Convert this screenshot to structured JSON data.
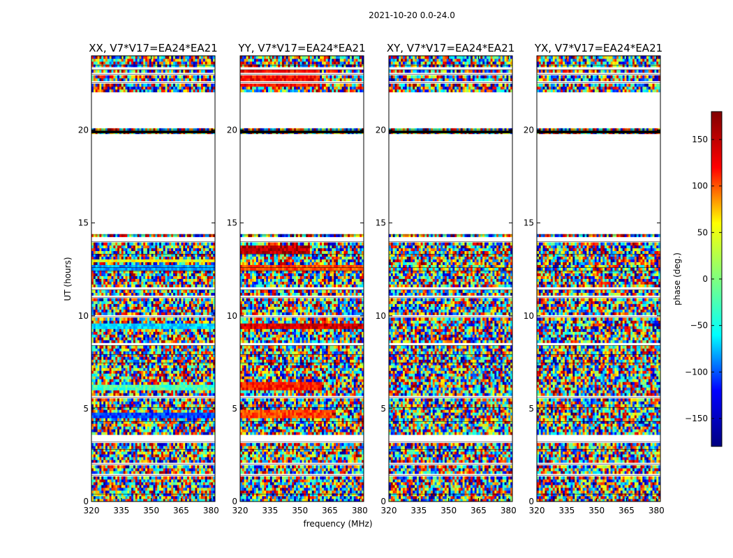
{
  "chart_data": {
    "type": "heatmap",
    "suptitle": "2021-10-20 0.0-24.0",
    "xlabel": "frequency (MHz)",
    "ylabel": "UT (hours)",
    "xlim": [
      320,
      382
    ],
    "ylim": [
      0,
      24
    ],
    "xticks": [
      "320",
      "335",
      "350",
      "365",
      "380"
    ],
    "yticks": [
      "0",
      "5",
      "10",
      "15",
      "20"
    ],
    "panels": [
      {
        "title": "XX, V7*V17=EA24*EA21",
        "coherent_bands": [
          {
            "t0": 4.55,
            "t1": 4.85,
            "phase": -110,
            "f_end": 382
          },
          {
            "t0": 6.0,
            "t1": 6.3,
            "phase": -20,
            "f_end": 382
          },
          {
            "t0": 9.3,
            "t1": 9.6,
            "phase": -60,
            "f_end": 382
          },
          {
            "t0": 12.5,
            "t1": 12.8,
            "phase": -80,
            "f_end": 382
          },
          {
            "t0": 12.85,
            "t1": 13.1,
            "phase": 40,
            "f_end": 382
          }
        ]
      },
      {
        "title": "YY, V7*V17=EA24*EA21",
        "coherent_bands": [
          {
            "t0": 4.55,
            "t1": 4.9,
            "phase": 110,
            "f_end": 366
          },
          {
            "t0": 6.05,
            "t1": 6.45,
            "phase": 125,
            "f_end": 361
          },
          {
            "t0": 9.35,
            "t1": 9.55,
            "phase": 150,
            "f_end": 382
          },
          {
            "t0": 12.5,
            "t1": 12.8,
            "phase": 110,
            "f_end": 382
          },
          {
            "t0": 13.3,
            "t1": 13.8,
            "phase": 160,
            "f_end": 355
          },
          {
            "t0": 22.3,
            "t1": 23.2,
            "phase": 135,
            "f_end": 360
          }
        ]
      },
      {
        "title": "XY, V7*V17=EA24*EA21",
        "coherent_bands": []
      },
      {
        "title": "YX, V7*V17=EA24*EA21",
        "coherent_bands": []
      }
    ],
    "flagged_rows": [
      [
        0.4,
        0.5
      ],
      [
        1.4,
        1.5
      ],
      [
        2.0,
        2.1
      ],
      [
        2.8,
        2.9
      ],
      [
        3.2,
        3.6
      ],
      [
        4.3,
        4.37
      ],
      [
        5.05,
        5.15
      ],
      [
        5.6,
        5.68
      ],
      [
        7.45,
        7.55
      ],
      [
        7.9,
        8.0
      ],
      [
        8.4,
        8.5
      ],
      [
        9.95,
        10.05
      ],
      [
        11.0,
        11.1
      ],
      [
        11.4,
        11.5
      ],
      [
        12.4,
        12.48
      ],
      [
        12.6,
        12.66
      ],
      [
        13.3,
        13.38
      ],
      [
        14.0,
        14.25
      ],
      [
        14.35,
        19.75
      ],
      [
        20.05,
        22.0
      ],
      [
        22.55,
        22.7
      ],
      [
        23.0,
        23.1
      ],
      [
        23.25,
        23.35
      ],
      [
        23.5,
        23.6
      ]
    ],
    "black_line_ut": 19.9,
    "colorbar": {
      "label": "phase (deg.)",
      "range": [
        -180,
        180
      ],
      "ticks": [
        "150",
        "100",
        "50",
        "0",
        "−50",
        "−100",
        "−150"
      ],
      "tick_values": [
        150,
        100,
        50,
        0,
        -50,
        -100,
        -150
      ],
      "colormap": "jet",
      "colors": [
        "#000080",
        "#0000ff",
        "#00ffff",
        "#7fff7f",
        "#ffff00",
        "#ff0000",
        "#800000"
      ]
    }
  }
}
